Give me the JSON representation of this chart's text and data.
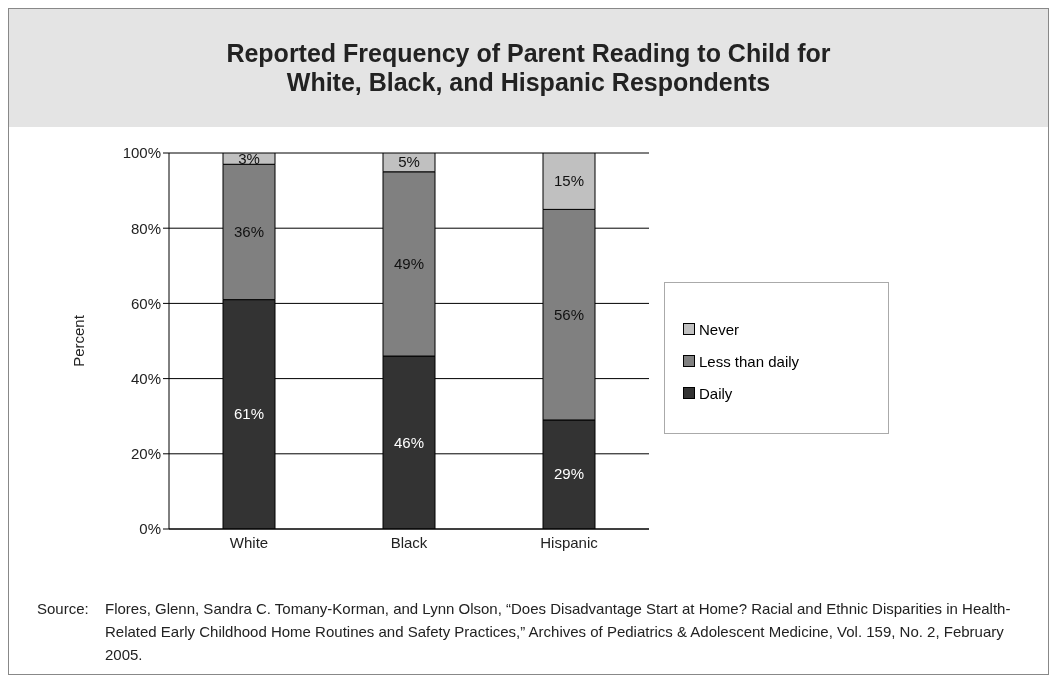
{
  "chart_data": {
    "type": "bar",
    "stacked": true,
    "title": "Reported Frequency of Parent Reading to Child for White, Black, and Hispanic Respondents",
    "ylabel": "Percent",
    "categories": [
      "White",
      "Black",
      "Hispanic"
    ],
    "series": [
      {
        "name": "Daily",
        "color": "#333333",
        "values": [
          61,
          46,
          29
        ],
        "value_labels": [
          "61%",
          "46%",
          "29%"
        ]
      },
      {
        "name": "Less than daily",
        "color": "#808080",
        "values": [
          36,
          49,
          56
        ],
        "value_labels": [
          "36%",
          "49%",
          "56%"
        ]
      },
      {
        "name": "Never",
        "color": "#c0c0c0",
        "values": [
          3,
          5,
          15
        ],
        "value_labels": [
          "3%",
          "5%",
          "15%"
        ]
      }
    ],
    "ylim": [
      0,
      100
    ],
    "yticks": [
      {
        "value": 0,
        "label": "0%"
      },
      {
        "value": 20,
        "label": "20%"
      },
      {
        "value": 40,
        "label": "40%"
      },
      {
        "value": 60,
        "label": "60%"
      },
      {
        "value": 80,
        "label": "80%"
      },
      {
        "value": 100,
        "label": "100%"
      }
    ],
    "grid": "y",
    "legend": "right",
    "annotations": [
      "Source:\tFlores, Glenn, Sandra C. Tomany-Korman, and Lynn Olson, “Does Disadvantage Start at Home?  Racial and Ethnic Disparities in Health-Related Early Childhood Home Routines and Safety Practices,” Archives of Pediatrics & Adolescent Medicine, Vol. 159, No. 2, February 2005."
    ]
  }
}
